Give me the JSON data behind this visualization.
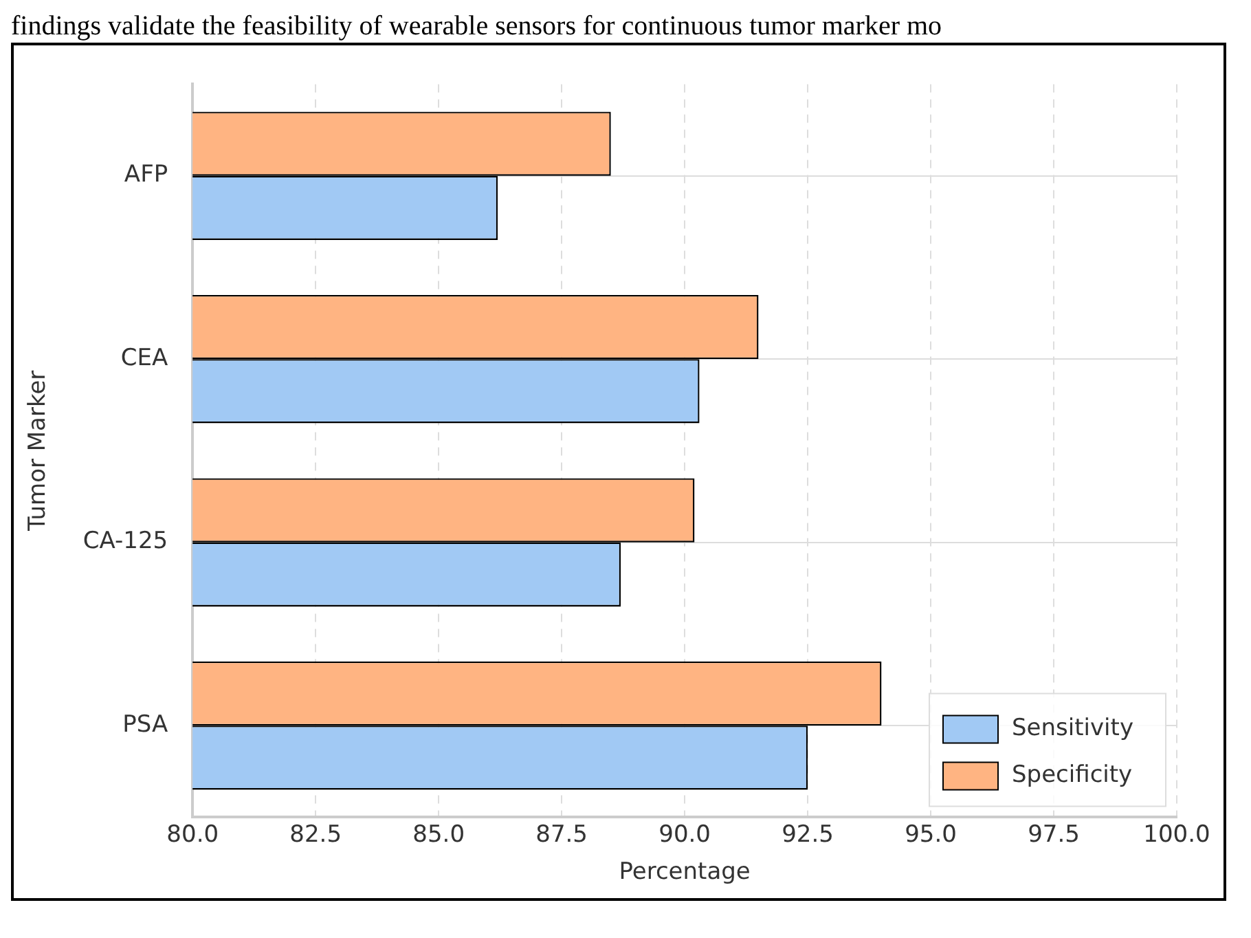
{
  "chart_data": {
    "type": "bar",
    "orientation": "horizontal",
    "annotations": [
      "findings validate the feasibility of wearable sensors for continuous tumor marker mo"
    ],
    "xlabel": "Percentage",
    "ylabel": "Tumor Marker",
    "categories": [
      "AFP",
      "CEA",
      "CA-125",
      "PSA"
    ],
    "series": [
      {
        "name": "Sensitivity",
        "color": "#a1c9f4",
        "values": [
          86.2,
          90.3,
          88.7,
          92.5
        ]
      },
      {
        "name": "Specificity",
        "color": "#ffb482",
        "values": [
          88.5,
          91.5,
          90.2,
          94.0
        ]
      }
    ],
    "xlim": [
      80,
      100
    ],
    "xticks": [
      {
        "value": 80,
        "label": "80.0"
      },
      {
        "value": 82.5,
        "label": "82.5"
      },
      {
        "value": 85,
        "label": "85.0"
      },
      {
        "value": 87.5,
        "label": "87.5"
      },
      {
        "value": 90,
        "label": "90.0"
      },
      {
        "value": 92.5,
        "label": "92.5"
      },
      {
        "value": 95,
        "label": "95.0"
      },
      {
        "value": 97.5,
        "label": "97.5"
      },
      {
        "value": 100,
        "label": "100.0"
      }
    ],
    "grid": true,
    "legend": "bottom right"
  }
}
